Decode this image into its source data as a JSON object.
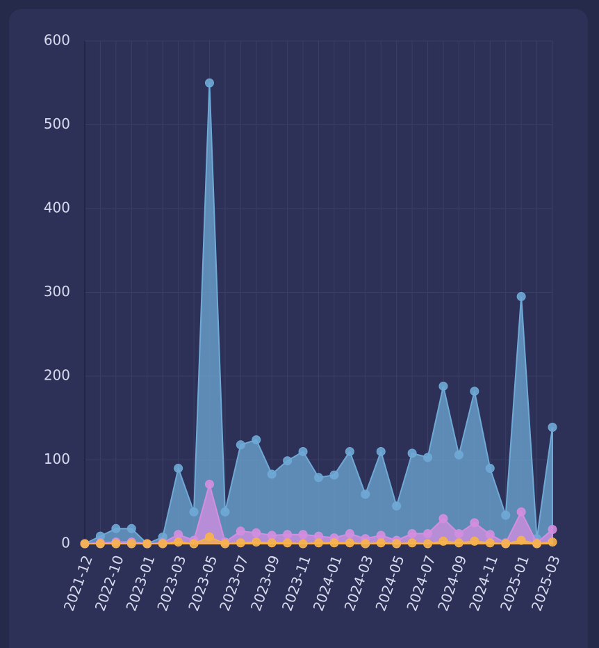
{
  "chart_data": {
    "type": "area",
    "categories": [
      "2021-12",
      null,
      "2022-10",
      null,
      "2023-01",
      null,
      "2023-03",
      null,
      "2023-05",
      null,
      "2023-07",
      null,
      "2023-09",
      null,
      "2023-11",
      null,
      "2024-01",
      null,
      "2024-03",
      null,
      "2024-05",
      null,
      "2024-07",
      null,
      "2024-09",
      null,
      "2024-11",
      null,
      "2025-01",
      null,
      "2025-03"
    ],
    "series": [
      {
        "color": "#6fa9d6",
        "values": [
          0,
          9,
          18,
          18,
          0,
          8,
          90,
          38,
          550,
          38,
          118,
          124,
          83,
          99,
          110,
          79,
          82,
          110,
          59,
          110,
          45,
          108,
          103,
          188,
          106,
          182,
          90,
          34,
          295,
          6,
          139
        ]
      },
      {
        "color": "#d48ee0",
        "values": [
          0,
          1,
          2,
          2,
          0,
          1,
          11,
          4,
          71,
          2,
          15,
          13,
          10,
          11,
          11,
          9,
          7,
          12,
          6,
          10,
          4,
          12,
          12,
          30,
          12,
          25,
          11,
          1,
          38,
          1,
          17
        ]
      },
      {
        "color": "#f7b24c",
        "values": [
          0,
          0,
          0,
          0,
          0,
          0,
          2,
          0,
          8,
          0,
          1,
          2,
          1,
          1,
          0,
          1,
          1,
          1,
          0,
          1,
          0,
          1,
          0,
          3,
          1,
          3,
          1,
          0,
          4,
          0,
          2
        ]
      }
    ],
    "ylim": [
      0,
      600
    ],
    "yticks": [
      0,
      100,
      200,
      300,
      400,
      500,
      600
    ],
    "grid": true
  }
}
